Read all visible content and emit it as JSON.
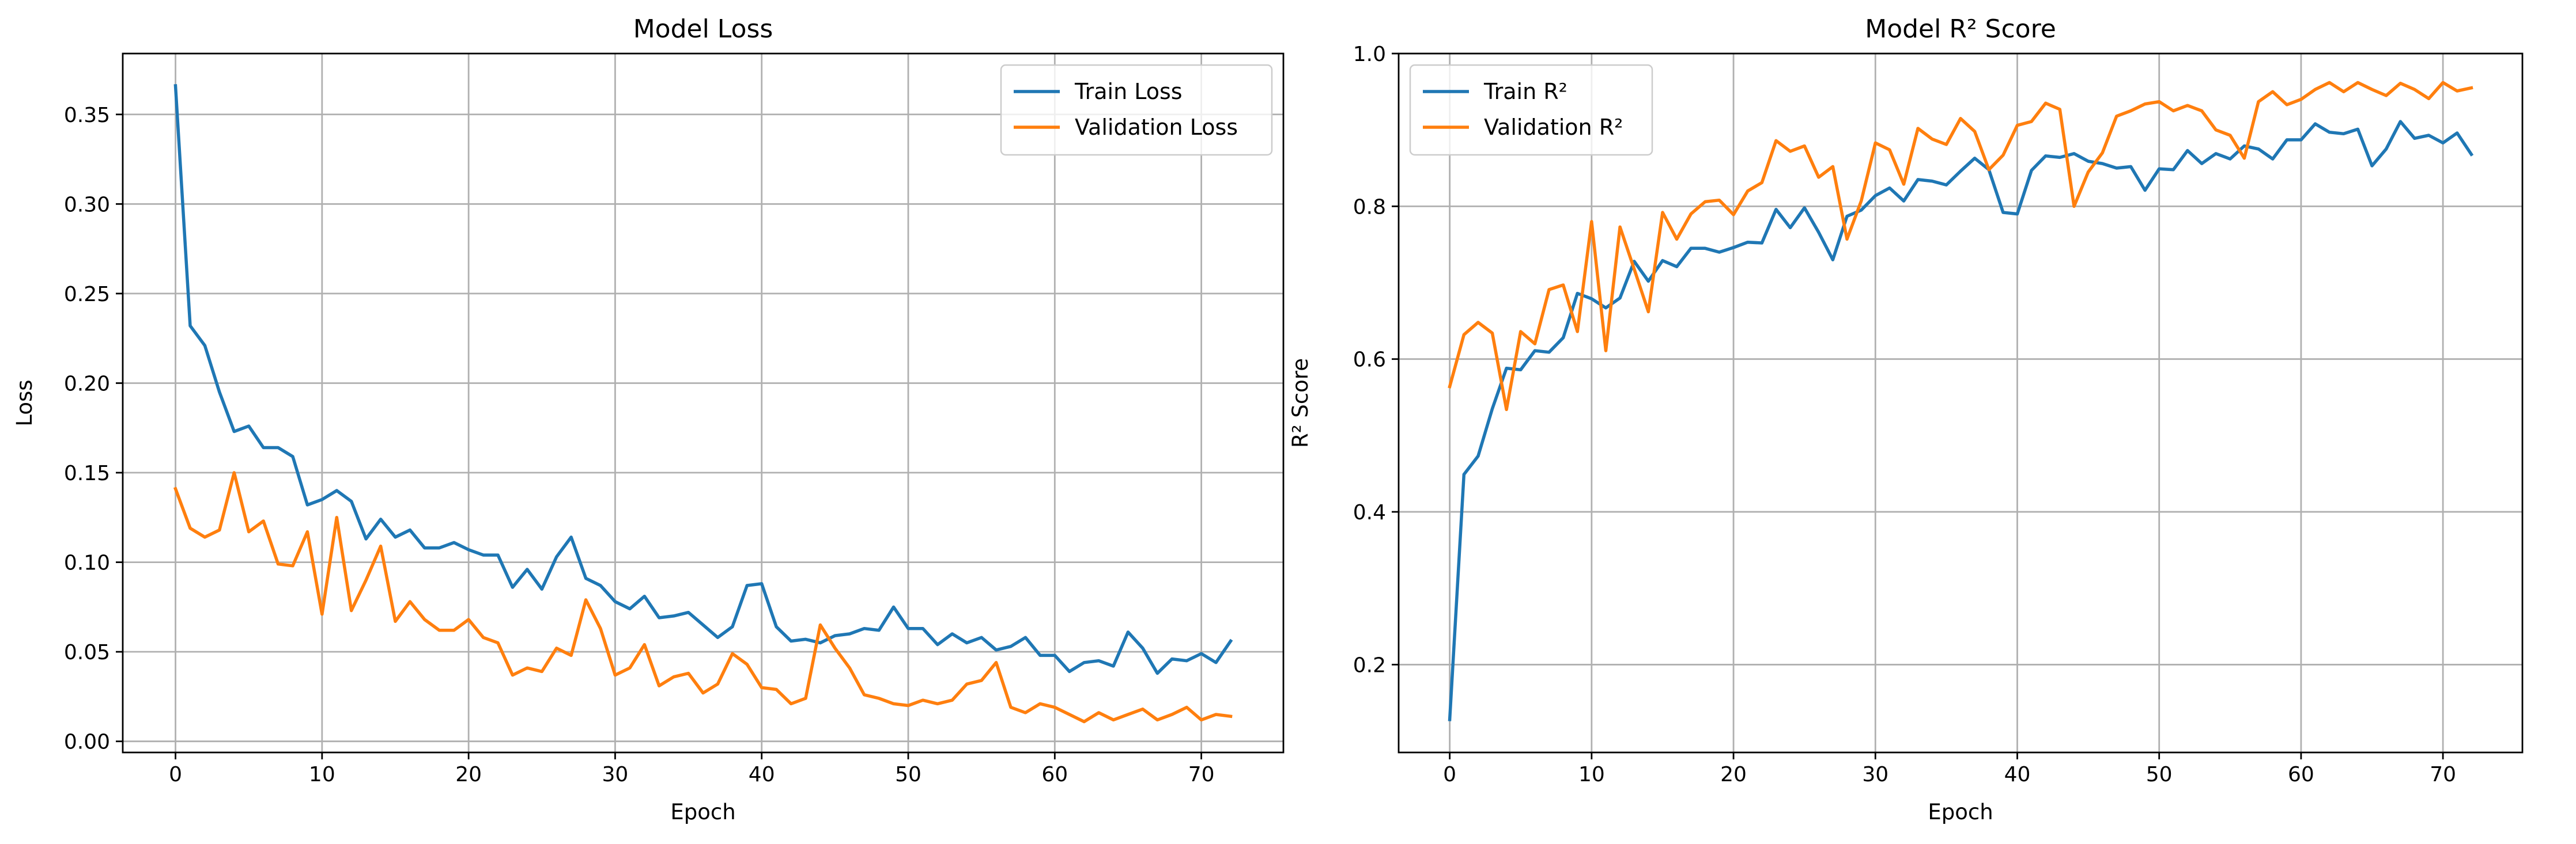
{
  "chart_data": [
    {
      "type": "line",
      "title": "Model Loss",
      "xlabel": "Epoch",
      "ylabel": "Loss",
      "xlim": [
        -3.6,
        75.6
      ],
      "ylim": [
        -0.0062,
        0.384
      ],
      "xticks": [
        0,
        10,
        20,
        30,
        40,
        50,
        60,
        70
      ],
      "yticks": [
        0.0,
        0.05,
        0.1,
        0.15,
        0.2,
        0.25,
        0.3,
        0.35
      ],
      "ytick_labels": [
        "0.00",
        "0.05",
        "0.10",
        "0.15",
        "0.20",
        "0.25",
        "0.30",
        "0.35"
      ],
      "grid": true,
      "legend": "upper right",
      "x": [
        0,
        1,
        2,
        3,
        4,
        5,
        6,
        7,
        8,
        9,
        10,
        11,
        12,
        13,
        14,
        15,
        16,
        17,
        18,
        19,
        20,
        21,
        22,
        23,
        24,
        25,
        26,
        27,
        28,
        29,
        30,
        31,
        32,
        33,
        34,
        35,
        36,
        37,
        38,
        39,
        40,
        41,
        42,
        43,
        44,
        45,
        46,
        47,
        48,
        49,
        50,
        51,
        52,
        53,
        54,
        55,
        56,
        57,
        58,
        59,
        60,
        61,
        62,
        63,
        64,
        65,
        66,
        67,
        68,
        69,
        70,
        71,
        72
      ],
      "series": [
        {
          "name": "Train Loss",
          "color": "#1f77b4",
          "values": [
            0.366,
            0.232,
            0.221,
            0.195,
            0.173,
            0.176,
            0.164,
            0.164,
            0.159,
            0.132,
            0.135,
            0.14,
            0.134,
            0.113,
            0.124,
            0.114,
            0.118,
            0.108,
            0.108,
            0.111,
            0.107,
            0.104,
            0.104,
            0.086,
            0.096,
            0.085,
            0.103,
            0.114,
            0.091,
            0.087,
            0.078,
            0.074,
            0.081,
            0.069,
            0.07,
            0.072,
            0.065,
            0.058,
            0.064,
            0.087,
            0.088,
            0.064,
            0.056,
            0.057,
            0.055,
            0.059,
            0.06,
            0.063,
            0.062,
            0.075,
            0.063,
            0.063,
            0.054,
            0.06,
            0.055,
            0.058,
            0.051,
            0.053,
            0.058,
            0.048,
            0.048,
            0.039,
            0.044,
            0.045,
            0.042,
            0.061,
            0.052,
            0.038,
            0.046,
            0.045,
            0.049,
            0.044,
            0.056
          ]
        },
        {
          "name": "Validation Loss",
          "color": "#ff7f0e",
          "values": [
            0.141,
            0.119,
            0.114,
            0.118,
            0.15,
            0.117,
            0.123,
            0.099,
            0.098,
            0.117,
            0.071,
            0.125,
            0.073,
            0.09,
            0.109,
            0.067,
            0.078,
            0.068,
            0.062,
            0.062,
            0.068,
            0.058,
            0.055,
            0.037,
            0.041,
            0.039,
            0.052,
            0.048,
            0.079,
            0.063,
            0.037,
            0.041,
            0.054,
            0.031,
            0.036,
            0.038,
            0.027,
            0.032,
            0.049,
            0.043,
            0.03,
            0.029,
            0.021,
            0.024,
            0.065,
            0.052,
            0.041,
            0.026,
            0.024,
            0.021,
            0.02,
            0.023,
            0.021,
            0.023,
            0.032,
            0.034,
            0.044,
            0.019,
            0.016,
            0.021,
            0.019,
            0.015,
            0.011,
            0.016,
            0.012,
            0.015,
            0.018,
            0.012,
            0.015,
            0.019,
            0.012,
            0.015,
            0.014
          ]
        }
      ]
    },
    {
      "type": "line",
      "title": "Model R² Score",
      "xlabel": "Epoch",
      "ylabel": "R² Score",
      "xlim": [
        -3.6,
        75.6
      ],
      "ylim": [
        0.085,
        1.0
      ],
      "xticks": [
        0,
        10,
        20,
        30,
        40,
        50,
        60,
        70
      ],
      "yticks": [
        0.2,
        0.4,
        0.6,
        0.8,
        1.0
      ],
      "ytick_labels": [
        "0.2",
        "0.4",
        "0.6",
        "0.8",
        "1.0"
      ],
      "grid": true,
      "legend": "upper left",
      "x": [
        0,
        1,
        2,
        3,
        4,
        5,
        6,
        7,
        8,
        9,
        10,
        11,
        12,
        13,
        14,
        15,
        16,
        17,
        18,
        19,
        20,
        21,
        22,
        23,
        24,
        25,
        26,
        27,
        28,
        29,
        30,
        31,
        32,
        33,
        34,
        35,
        36,
        37,
        38,
        39,
        40,
        41,
        42,
        43,
        44,
        45,
        46,
        47,
        48,
        49,
        50,
        51,
        52,
        53,
        54,
        55,
        56,
        57,
        58,
        59,
        60,
        61,
        62,
        63,
        64,
        65,
        66,
        67,
        68,
        69,
        70,
        71,
        72
      ],
      "series": [
        {
          "name": "Train R²",
          "color": "#1f77b4",
          "values": [
            0.128,
            0.449,
            0.473,
            0.535,
            0.588,
            0.586,
            0.611,
            0.609,
            0.628,
            0.686,
            0.679,
            0.667,
            0.68,
            0.728,
            0.702,
            0.729,
            0.721,
            0.745,
            0.745,
            0.74,
            0.746,
            0.753,
            0.752,
            0.796,
            0.772,
            0.798,
            0.766,
            0.73,
            0.787,
            0.795,
            0.814,
            0.824,
            0.807,
            0.835,
            0.833,
            0.828,
            0.846,
            0.863,
            0.848,
            0.792,
            0.79,
            0.847,
            0.866,
            0.864,
            0.869,
            0.859,
            0.856,
            0.85,
            0.852,
            0.821,
            0.849,
            0.848,
            0.873,
            0.856,
            0.869,
            0.862,
            0.879,
            0.875,
            0.862,
            0.887,
            0.887,
            0.908,
            0.897,
            0.895,
            0.901,
            0.853,
            0.875,
            0.911,
            0.889,
            0.893,
            0.883,
            0.896,
            0.868
          ]
        },
        {
          "name": "Validation R²",
          "color": "#ff7f0e",
          "values": [
            0.564,
            0.632,
            0.648,
            0.634,
            0.534,
            0.636,
            0.62,
            0.691,
            0.697,
            0.636,
            0.78,
            0.611,
            0.773,
            0.718,
            0.662,
            0.792,
            0.757,
            0.79,
            0.806,
            0.808,
            0.789,
            0.82,
            0.831,
            0.886,
            0.872,
            0.879,
            0.838,
            0.852,
            0.757,
            0.807,
            0.883,
            0.874,
            0.829,
            0.902,
            0.888,
            0.881,
            0.915,
            0.898,
            0.848,
            0.867,
            0.906,
            0.911,
            0.935,
            0.927,
            0.8,
            0.845,
            0.87,
            0.918,
            0.925,
            0.934,
            0.937,
            0.925,
            0.932,
            0.925,
            0.9,
            0.893,
            0.863,
            0.937,
            0.95,
            0.933,
            0.94,
            0.953,
            0.962,
            0.95,
            0.962,
            0.953,
            0.945,
            0.961,
            0.953,
            0.941,
            0.962,
            0.951,
            0.955
          ]
        }
      ]
    }
  ]
}
